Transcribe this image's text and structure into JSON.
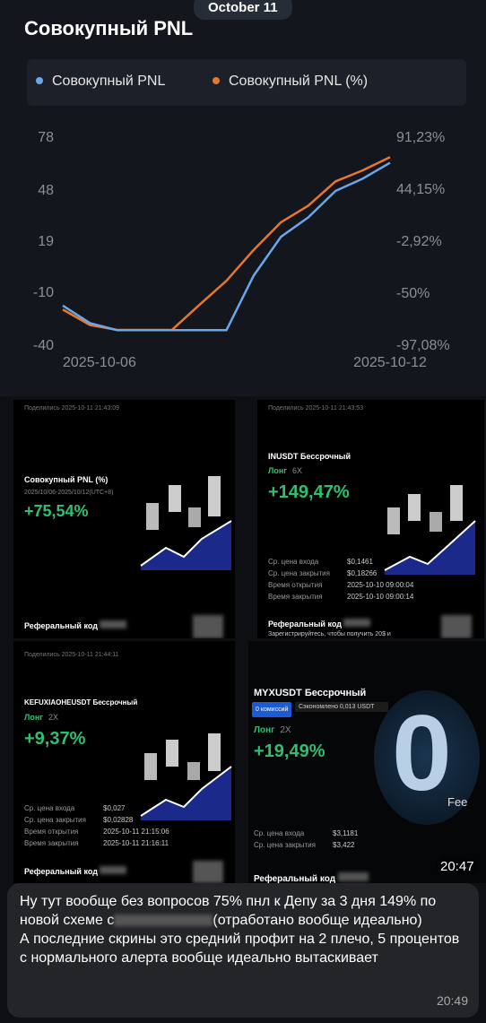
{
  "date_pill": "October 11",
  "chart_data": {
    "type": "line",
    "title": "Совокупный PNL",
    "categories": [
      "2025-10-06",
      null,
      null,
      null,
      null,
      null,
      null,
      null,
      null,
      null,
      null,
      null,
      "2025-10-12"
    ],
    "series": [
      {
        "name": "Совокупный PNL",
        "color": "#6aa6e8",
        "values": [
          -17,
          -27,
          -31,
          -31,
          -31,
          -31,
          -31,
          0,
          22,
          33,
          48,
          55,
          64
        ]
      },
      {
        "name": "Совокупный PNL (%)",
        "color": "#e8772e",
        "axis": "y2",
        "values": [
          -64,
          -78,
          -82.5,
          -82.5,
          -82.5,
          -60,
          -38,
          -10,
          15,
          30,
          52,
          62,
          74
        ]
      }
    ],
    "ylim": [
      -40,
      78
    ],
    "yticks": [
      -40,
      -10,
      19,
      48,
      78
    ],
    "y2lim": [
      -97.08,
      91.23
    ],
    "y2ticks": [
      {
        "value": -97.08,
        "label": "-97,08%"
      },
      {
        "value": -50,
        "label": "-50%"
      },
      {
        "value": -2.92,
        "label": "-2,92%"
      },
      {
        "value": 44.15,
        "label": "44,15%"
      },
      {
        "value": 91.23,
        "label": "91,23%"
      }
    ],
    "grid": false
  },
  "screenshots": [
    {
      "shared": "Поделились 2025-10-11 21:43:09",
      "title": "Совокупный PNL (%)",
      "period": "2025/10/06-2025/10/12(UTC+8)",
      "pnl": "+75,54%",
      "referral": "Реферальный код"
    },
    {
      "shared": "Поделились 2025-10-11 21:43:53",
      "title": "INUSDT Бессрочный",
      "side": "Лонг",
      "leverage": "6X",
      "pnl": "+149,47%",
      "rows": [
        [
          "Ср. цена входа",
          "$0,1461"
        ],
        [
          "Ср. цена закрытия",
          "$0,18266"
        ],
        [
          "Время открытия",
          "2025-10-10 09:00:04"
        ],
        [
          "Время закрытия",
          "2025-10-10 09:00:14"
        ]
      ],
      "referral": "Реферальный код",
      "promo": "Зарегистрируйтесь, чтобы получить 20$ и"
    },
    {
      "shared": "Поделились 2025-10-11 21:44:11",
      "title": "KEFUXIAOHEUSDT Бессрочный",
      "side": "Лонг",
      "leverage": "2X",
      "pnl": "+9,37%",
      "rows": [
        [
          "Ср. цена входа",
          "$0,027"
        ],
        [
          "Ср. цена закрытия",
          "$0,02828"
        ],
        [
          "Время открытия",
          "2025-10-11 21:15:06"
        ],
        [
          "Время закрытия",
          "2025-10-11 21:16:11"
        ]
      ],
      "referral": "Реферальный код"
    },
    {
      "title": "MYXUSDT Бессрочный",
      "badge": "0 комиссий",
      "saved": "Сэкономлено 0,013 USDT",
      "side": "Лонг",
      "leverage": "2X",
      "pnl": "+19,49%",
      "rows": [
        [
          "Ср. цена входа",
          "$3,1181"
        ],
        [
          "Ср. цена закрытия",
          "$3,422"
        ]
      ],
      "referral": "Реферальный код",
      "zero": "0",
      "fee": "Fee"
    }
  ],
  "photo_time": "20:47",
  "message": {
    "part1": "Ну тут вообще без вопросов 75% пнл к Депу за 3 дня 149% по новой схеме с",
    "part2": "(отработано вообще идеально)",
    "part3": "А последние скрины это средний профит на 2 плечо, 5 процентов с нормального алерта вообще идеально вытаскивает",
    "time": "20:49"
  }
}
